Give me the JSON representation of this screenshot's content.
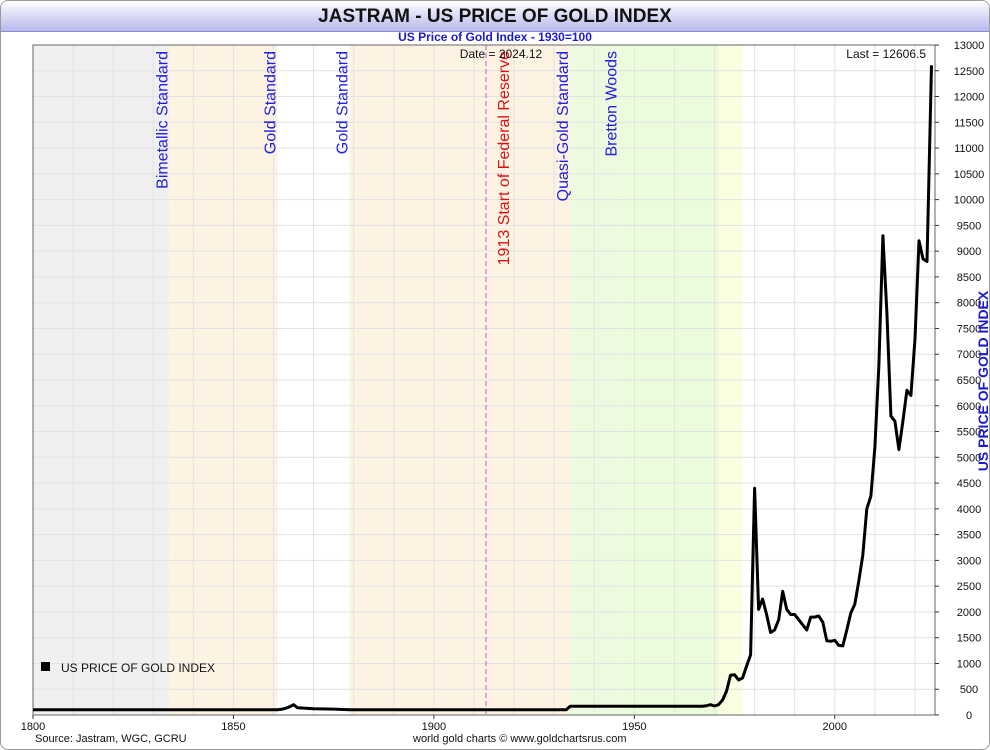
{
  "chart_data": {
    "type": "line",
    "title": "JASTRAM - US PRICE OF GOLD INDEX",
    "subtitle": "US Price of Gold Index - 1930=100",
    "ylabel": "US PRICE OF GOLD INDEX",
    "date_label": "Date = 2024.12",
    "last_label": "Last = 12606.5",
    "source": "Source: Jastram, WGC, GCRU",
    "credit": "world gold charts © www.goldchartsrus.com",
    "legend_position": "bottom-left",
    "grid": true,
    "xlim": [
      1800,
      2025
    ],
    "ylim": [
      0,
      13000
    ],
    "x_ticks": [
      1800,
      1850,
      1900,
      1950,
      2000
    ],
    "y_ticks": [
      0,
      500,
      1000,
      1500,
      2000,
      2500,
      3000,
      3500,
      4000,
      4500,
      5000,
      5500,
      6000,
      6500,
      7000,
      7500,
      8000,
      8500,
      9000,
      9500,
      10000,
      10500,
      11000,
      11500,
      12000,
      12500,
      13000
    ],
    "regions": [
      {
        "label": "Bimetallic Standard",
        "start": 1834,
        "end": 1861,
        "color": "#fdf3e3",
        "label_color": "#2020e0"
      },
      {
        "label": "Gold Standard",
        "start": 1861,
        "end": 1879,
        "color": "#ffffff",
        "label_color": "#2020e0"
      },
      {
        "label": "Gold Standard",
        "start": 1879,
        "end": 1934,
        "color": "#fdf3e3",
        "label_color": "#2020e0"
      },
      {
        "label": "Quasi-Gold Standard",
        "start": 1934,
        "end": 1946,
        "color": "#edfadf",
        "label_color": "#2020e0"
      },
      {
        "label": "Bretton Woods",
        "start": 1946,
        "end": 1971,
        "color": "#ebfcdc",
        "label_color": "#2020e0"
      },
      {
        "label": "",
        "start": 1971,
        "end": 1977,
        "color": "#fbfde0",
        "label_color": "#2020e0"
      }
    ],
    "base_region": {
      "start": 1800,
      "end": 1834,
      "color": "#f0f0f0"
    },
    "vline": {
      "label": "1913 Start of Federal Reserve",
      "x": 1913,
      "color": "#e01010"
    },
    "series": [
      {
        "name": "US PRICE OF GOLD INDEX",
        "color": "#000000",
        "x": [
          1800,
          1834,
          1861,
          1862,
          1863,
          1864,
          1865,
          1866,
          1867,
          1870,
          1875,
          1879,
          1900,
          1913,
          1933,
          1934,
          1940,
          1950,
          1960,
          1967,
          1968,
          1969,
          1970,
          1971,
          1972,
          1973,
          1974,
          1975,
          1976,
          1977,
          1978,
          1979,
          1980,
          1981,
          1982,
          1983,
          1984,
          1985,
          1986,
          1987,
          1988,
          1989,
          1990,
          1991,
          1992,
          1993,
          1994,
          1995,
          1996,
          1997,
          1998,
          1999,
          2000,
          2001,
          2002,
          2003,
          2004,
          2005,
          2006,
          2007,
          2008,
          2009,
          2010,
          2011,
          2012,
          2013,
          2014,
          2015,
          2016,
          2017,
          2018,
          2019,
          2020,
          2021,
          2022,
          2023,
          2024.12
        ],
        "values": [
          100,
          100,
          100,
          110,
          130,
          160,
          200,
          140,
          135,
          120,
          115,
          100,
          100,
          100,
          100,
          170,
          170,
          170,
          170,
          170,
          180,
          200,
          175,
          200,
          290,
          460,
          770,
          780,
          680,
          720,
          950,
          1170,
          4400,
          2050,
          2250,
          1950,
          1600,
          1650,
          1850,
          2400,
          2050,
          1950,
          1950,
          1850,
          1750,
          1650,
          1900,
          1900,
          1920,
          1800,
          1440,
          1430,
          1450,
          1350,
          1340,
          1650,
          1980,
          2150,
          2600,
          3100,
          4000,
          4250,
          5200,
          6800,
          9300,
          7800,
          5800,
          5700,
          5150,
          5700,
          6300,
          6200,
          7300,
          9200,
          8850,
          8800,
          12606.5
        ]
      }
    ]
  }
}
